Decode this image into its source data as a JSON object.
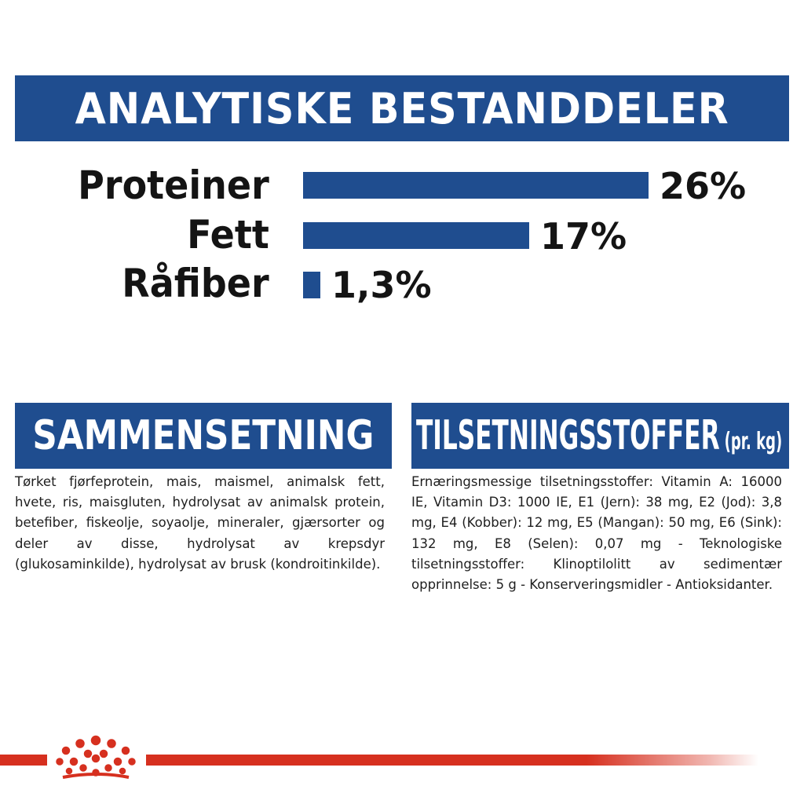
{
  "analytical": {
    "heading": "ANALYTISKE BESTANDDELER",
    "rows": [
      {
        "label": "Proteiner",
        "value_text": "26%",
        "value": 26
      },
      {
        "label": "Fett",
        "value_text": "17%",
        "value": 17
      },
      {
        "label": "Råfiber",
        "value_text": "1,3%",
        "value": 1.3
      }
    ]
  },
  "composition": {
    "heading": "SAMMENSETNING",
    "text": "Tørket fjørfeprotein, mais, maismel, animalsk fett, hvete, ris, maisgluten, hydrolysat av animalsk protein, betefiber, fiskeolje, soyaolje, mineraler, gjærsorter og deler av disse, hydrolysat av krepsdyr (glukosaminkilde), hydrolysat av brusk (kondroitinkilde)."
  },
  "additives": {
    "heading": "TILSETNINGSSTOFFER",
    "heading_sub": "(pr. kg)",
    "text": "Ernæringsmessige tilsetningsstoffer: Vitamin A: 16000 IE, Vitamin D3: 1000 IE, E1 (Jern): 38 mg, E2 (Jod): 3,8 mg, E4 (Kobber): 12 mg, E5 (Mangan): 50 mg, E6 (Sink): 132 mg, E8 (Selen): 0,07 mg - Teknologiske tilsetningsstoffer: Klinoptilolitt av sedimentær opprinnelse: 5 g - Konserveringsmidler - Antioksidanter."
  },
  "footer": {
    "logo_icon": "crown-icon"
  },
  "colors": {
    "banner_blue": "#1f4d8f",
    "brand_red": "#d6301f",
    "text_dark": "#141414"
  }
}
